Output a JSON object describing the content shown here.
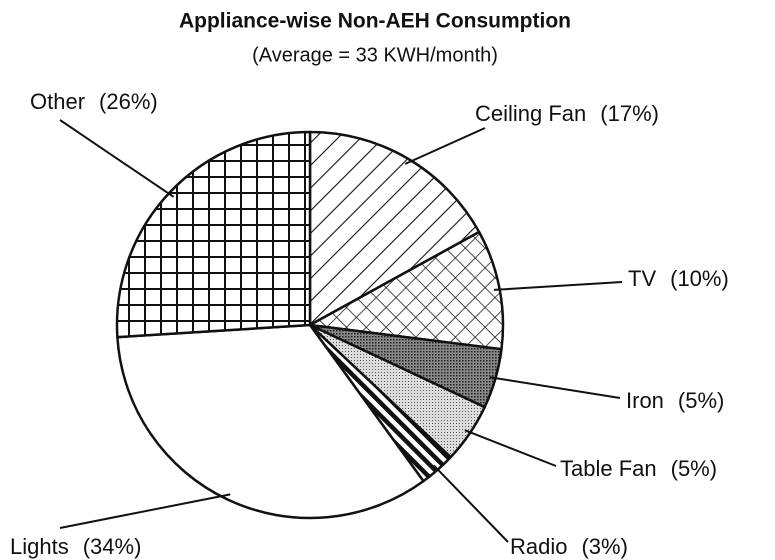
{
  "chart_data": {
    "type": "pie",
    "title": "Appliance-wise Non-AEH Consumption",
    "subtitle": "(Average = 33 KWH/month)",
    "categories": [
      "Ceiling Fan",
      "TV",
      "Iron",
      "Table Fan",
      "Radio",
      "Lights",
      "Other"
    ],
    "values": [
      17,
      10,
      5,
      5,
      3,
      34,
      26
    ],
    "value_labels": [
      "(17%)",
      "(10%)",
      "(5%)",
      "(5%)",
      "(3%)",
      "(34%)",
      "(26%)"
    ],
    "patterns": [
      "diagonal",
      "crosshatch",
      "dark-dots",
      "light-dots",
      "stripes",
      "none",
      "grid"
    ]
  }
}
